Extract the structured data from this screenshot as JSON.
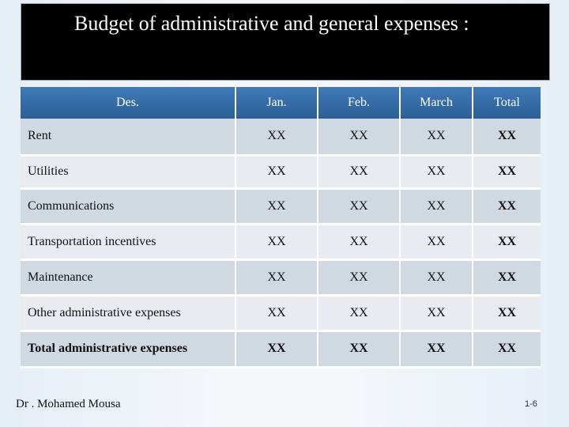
{
  "title": "Budget of administrative and general expenses :",
  "table": {
    "headers": [
      "Des.",
      "Jan.",
      "Feb.",
      "March",
      "Total"
    ],
    "rows": [
      {
        "label": "Rent",
        "jan": "XX",
        "feb": "XX",
        "march": "XX",
        "total": "XX"
      },
      {
        "label": "Utilities",
        "jan": "XX",
        "feb": "XX",
        "march": "XX",
        "total": "XX"
      },
      {
        "label": "Communications",
        "jan": "XX",
        "feb": "XX",
        "march": "XX",
        "total": "XX"
      },
      {
        "label": "Transportation incentives",
        "jan": "XX",
        "feb": "XX",
        "march": "XX",
        "total": "XX"
      },
      {
        "label": "Maintenance",
        "jan": "XX",
        "feb": "XX",
        "march": "XX",
        "total": "XX"
      },
      {
        "label": "Other administrative expenses",
        "jan": "XX",
        "feb": "XX",
        "march": "XX",
        "total": "XX"
      },
      {
        "label": "Total administrative expenses",
        "jan": "XX",
        "feb": "XX",
        "march": "XX",
        "total": "XX"
      }
    ]
  },
  "footer": {
    "author": "Dr . Mohamed Mousa",
    "page": "1-6"
  },
  "colors": {
    "title_background": "#000000",
    "header_background": "#2c5f96",
    "row_dark": "#d0d8e2",
    "row_light": "#e8ecf1"
  }
}
